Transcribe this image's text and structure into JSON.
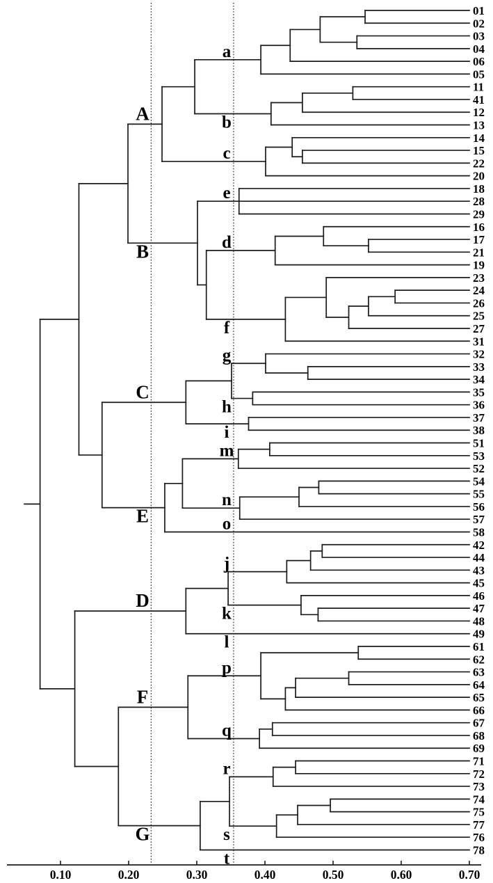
{
  "figure": {
    "background_color": "#ffffff",
    "line_color": "#1b1b1b",
    "description": "Hierarchical clustering dendrogram with leaves at right, distance axis at bottom, two vertical dotted threshold lines defining major clusters (A-G) and minor clusters (a-t)"
  },
  "chart_data": {
    "type": "dendrogram",
    "orientation": "horizontal, root at left, leaf tips at right at value 0.70",
    "axis": {
      "tick_values": [
        0.1,
        0.2,
        0.3,
        0.4,
        0.5,
        0.6,
        0.7
      ],
      "tick_labels": [
        "0.10",
        "0.20",
        "0.30",
        "0.40",
        "0.50",
        "0.60",
        "0.70"
      ],
      "range": [
        0.05,
        0.72
      ],
      "position": "bottom"
    },
    "threshold_lines": [
      0.233,
      0.354
    ],
    "root_edge_start": 0.047,
    "leaf_tip_value": 0.7,
    "leaf_order": [
      "01",
      "02",
      "03",
      "04",
      "06",
      "05",
      "11",
      "41",
      "12",
      "13",
      "14",
      "15",
      "22",
      "20",
      "18",
      "28",
      "29",
      "16",
      "17",
      "21",
      "19",
      "23",
      "24",
      "26",
      "25",
      "27",
      "31",
      "32",
      "33",
      "34",
      "35",
      "36",
      "37",
      "38",
      "51",
      "53",
      "52",
      "54",
      "55",
      "56",
      "57",
      "58",
      "42",
      "44",
      "43",
      "45",
      "46",
      "47",
      "48",
      "49",
      "61",
      "62",
      "63",
      "64",
      "65",
      "66",
      "67",
      "68",
      "69",
      "71",
      "72",
      "73",
      "74",
      "75",
      "77",
      "76",
      "78"
    ],
    "major_clusters": {
      "A": [
        "a",
        "b",
        "c"
      ],
      "B": [
        "e",
        "d",
        "f"
      ],
      "C": [
        "g",
        "h",
        "i"
      ],
      "E": [
        "m",
        "n",
        "o"
      ],
      "D": [
        "j",
        "k",
        "l"
      ],
      "F": [
        "p",
        "q"
      ],
      "G": [
        "r",
        "s",
        "t"
      ]
    },
    "minor_clusters": {
      "a": [
        "01",
        "02",
        "03",
        "04",
        "06",
        "05"
      ],
      "b": [
        "11",
        "41",
        "12",
        "13"
      ],
      "c": [
        "14",
        "15",
        "22",
        "20"
      ],
      "e": [
        "18",
        "28",
        "29"
      ],
      "d": [
        "16",
        "17",
        "21",
        "19"
      ],
      "f": [
        "23",
        "24",
        "26",
        "25",
        "27",
        "31"
      ],
      "g": [
        "32",
        "33",
        "34"
      ],
      "h": [
        "35",
        "36"
      ],
      "i": [
        "37",
        "38"
      ],
      "m": [
        "51",
        "53",
        "52"
      ],
      "n": [
        "54",
        "55",
        "56",
        "57"
      ],
      "o": [
        "58"
      ],
      "j": [
        "42",
        "44",
        "43",
        "45"
      ],
      "k": [
        "46",
        "47",
        "48"
      ],
      "l": [
        "49"
      ],
      "p": [
        "61",
        "62",
        "63",
        "64",
        "65",
        "66"
      ],
      "q": [
        "67",
        "68",
        "69"
      ],
      "r": [
        "71",
        "72",
        "73"
      ],
      "s": [
        "74",
        "75",
        "77",
        "76"
      ],
      "t": [
        "78"
      ]
    },
    "tree": {
      "h": 0.07,
      "c": [
        {
          "h": 0.127,
          "c": [
            {
              "h": 0.199,
              "c": [
                {
                  "h": 0.249,
                  "label": "A",
                  "lp": "above",
                  "size": "major",
                  "c": [
                    {
                      "h": 0.297,
                      "c": [
                        {
                          "h": 0.394,
                          "label": "a",
                          "lp": "above",
                          "size": "minor",
                          "c": [
                            {
                              "h": 0.437,
                              "c": [
                                {
                                  "h": 0.481,
                                  "c": [
                                    {
                                      "h": 0.547,
                                      "c": [
                                        "01",
                                        "02"
                                      ]
                                    },
                                    {
                                      "h": 0.535,
                                      "c": [
                                        "03",
                                        "04"
                                      ]
                                    }
                                  ]
                                },
                                "06"
                              ]
                            },
                            "05"
                          ]
                        },
                        {
                          "h": 0.409,
                          "label": "b",
                          "lp": "below",
                          "size": "minor",
                          "c": [
                            {
                              "h": 0.455,
                              "c": [
                                {
                                  "h": 0.529,
                                  "c": [
                                    "11",
                                    "41"
                                  ]
                                },
                                "12"
                              ]
                            },
                            "13"
                          ]
                        }
                      ]
                    },
                    {
                      "h": 0.401,
                      "label": "c",
                      "lp": "above",
                      "size": "minor",
                      "c": [
                        {
                          "h": 0.44,
                          "c": [
                            "14",
                            {
                              "h": 0.455,
                              "c": [
                                "15",
                                "22"
                              ]
                            }
                          ]
                        },
                        "20"
                      ]
                    }
                  ]
                },
                {
                  "h": 0.301,
                  "label": "B",
                  "lp": "below",
                  "size": "major",
                  "c": [
                    {
                      "h": 0.362,
                      "label": "e",
                      "lp": "above",
                      "size": "minor",
                      "c": [
                        "18",
                        "28",
                        "29"
                      ]
                    },
                    {
                      "h": 0.314,
                      "c": [
                        {
                          "h": 0.415,
                          "label": "d",
                          "lp": "above",
                          "size": "minor",
                          "c": [
                            {
                              "h": 0.486,
                              "c": [
                                "16",
                                {
                                  "h": 0.552,
                                  "c": [
                                    "17",
                                    "21"
                                  ]
                                }
                              ]
                            },
                            "19"
                          ]
                        },
                        {
                          "h": 0.43,
                          "label": "f",
                          "lp": "below",
                          "size": "minor",
                          "c": [
                            {
                              "h": 0.49,
                              "c": [
                                "23",
                                {
                                  "h": 0.523,
                                  "c": [
                                    {
                                      "h": 0.552,
                                      "c": [
                                        {
                                          "h": 0.591,
                                          "c": [
                                            "24",
                                            "26"
                                          ]
                                        },
                                        "25"
                                      ]
                                    },
                                    "27"
                                  ]
                                }
                              ]
                            },
                            "31"
                          ]
                        }
                      ]
                    }
                  ]
                }
              ]
            },
            {
              "h": 0.161,
              "c": [
                {
                  "h": 0.284,
                  "label": "C",
                  "lp": "above",
                  "size": "major",
                  "c": [
                    {
                      "h": 0.351,
                      "c": [
                        {
                          "h": 0.401,
                          "label": "g",
                          "lp": "above",
                          "size": "minor",
                          "c": [
                            "32",
                            {
                              "h": 0.463,
                              "c": [
                                "33",
                                "34"
                              ]
                            }
                          ]
                        },
                        {
                          "h": 0.382,
                          "label": "h",
                          "lp": "below",
                          "size": "minor",
                          "c": [
                            "35",
                            "36"
                          ]
                        }
                      ]
                    },
                    {
                      "h": 0.376,
                      "label": "i",
                      "lp": "below",
                      "size": "minor",
                      "c": [
                        "37",
                        "38"
                      ]
                    }
                  ]
                },
                {
                  "h": 0.253,
                  "label": "E",
                  "lp": "below",
                  "size": "major",
                  "c": [
                    {
                      "h": 0.279,
                      "c": [
                        {
                          "h": 0.361,
                          "label": "m",
                          "lp": "above",
                          "size": "minor",
                          "c": [
                            {
                              "h": 0.407,
                              "c": [
                                "51",
                                "53"
                              ]
                            },
                            "52"
                          ]
                        },
                        {
                          "h": 0.363,
                          "label": "n",
                          "lp": "above",
                          "size": "minor",
                          "c": [
                            {
                              "h": 0.45,
                              "c": [
                                {
                                  "h": 0.479,
                                  "c": [
                                    "54",
                                    "55"
                                  ]
                                },
                                "56"
                              ]
                            },
                            "57"
                          ]
                        }
                      ]
                    },
                    {
                      "leaf": "58",
                      "label": "o",
                      "lp": "above",
                      "size": "minor"
                    }
                  ]
                }
              ]
            }
          ]
        },
        {
          "h": 0.121,
          "c": [
            {
              "h": 0.284,
              "label": "D",
              "lp": "above",
              "size": "major",
              "c": [
                {
                  "h": 0.346,
                  "c": [
                    {
                      "h": 0.432,
                      "label": "j",
                      "lp": "above",
                      "size": "minor",
                      "c": [
                        {
                          "h": 0.467,
                          "c": [
                            {
                              "h": 0.484,
                              "c": [
                                "42",
                                "44"
                              ]
                            },
                            "43"
                          ]
                        },
                        "45"
                      ]
                    },
                    {
                      "h": 0.453,
                      "label": "k",
                      "lp": "below",
                      "size": "minor",
                      "c": [
                        "46",
                        {
                          "h": 0.478,
                          "c": [
                            "47",
                            "48"
                          ]
                        }
                      ]
                    }
                  ]
                },
                {
                  "leaf": "49",
                  "label": "l",
                  "lp": "below",
                  "size": "minor"
                }
              ]
            },
            {
              "h": 0.185,
              "c": [
                {
                  "h": 0.287,
                  "label": "F",
                  "lp": "above",
                  "size": "major",
                  "c": [
                    {
                      "h": 0.394,
                      "label": "p",
                      "lp": "above",
                      "size": "minor",
                      "c": [
                        {
                          "h": 0.537,
                          "c": [
                            "61",
                            "62"
                          ]
                        },
                        {
                          "h": 0.43,
                          "c": [
                            {
                              "h": 0.445,
                              "c": [
                                {
                                  "h": 0.523,
                                  "c": [
                                    "63",
                                    "64"
                                  ]
                                },
                                "65"
                              ]
                            },
                            "66"
                          ]
                        }
                      ]
                    },
                    {
                      "h": 0.392,
                      "label": "q",
                      "lp": "above",
                      "size": "minor",
                      "c": [
                        {
                          "h": 0.411,
                          "c": [
                            "67",
                            "68"
                          ]
                        },
                        "69"
                      ]
                    }
                  ]
                },
                {
                  "h": 0.305,
                  "label": "G",
                  "lp": "below",
                  "size": "major",
                  "c": [
                    {
                      "h": 0.348,
                      "c": [
                        {
                          "h": 0.412,
                          "label": "r",
                          "lp": "above",
                          "size": "minor",
                          "c": [
                            {
                              "h": 0.445,
                              "c": [
                                "71",
                                "72"
                              ]
                            },
                            "73"
                          ]
                        },
                        {
                          "h": 0.417,
                          "label": "s",
                          "lp": "below",
                          "size": "minor",
                          "c": [
                            {
                              "h": 0.448,
                              "c": [
                                {
                                  "h": 0.496,
                                  "c": [
                                    "74",
                                    "75"
                                  ]
                                },
                                "77"
                              ]
                            },
                            "76"
                          ]
                        }
                      ]
                    },
                    {
                      "leaf": "78",
                      "label": "t",
                      "lp": "below",
                      "size": "minor"
                    }
                  ]
                }
              ]
            }
          ]
        }
      ]
    }
  }
}
